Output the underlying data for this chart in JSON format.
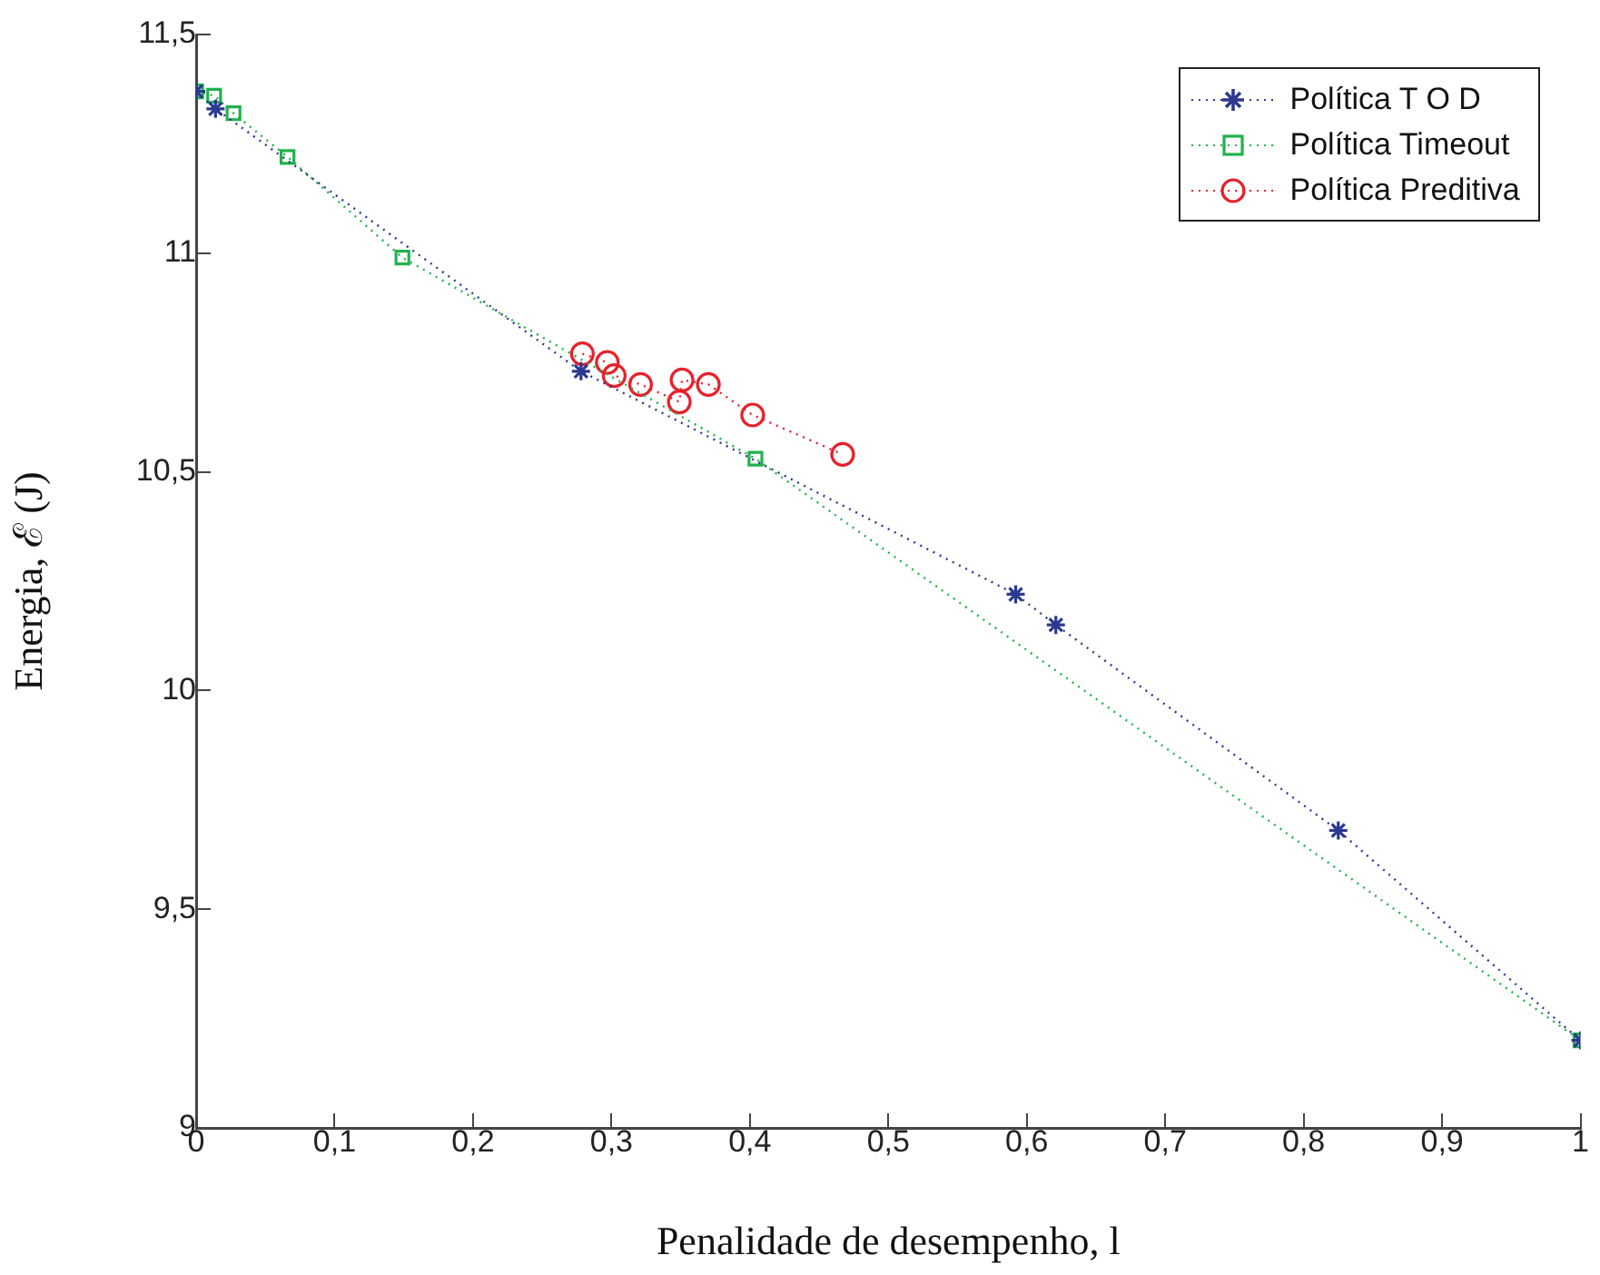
{
  "chart_data": {
    "type": "line",
    "xlabel": "Penalidade de desempenho, l",
    "ylabel": "Energia, ℰ (J)",
    "xlim": [
      0,
      1
    ],
    "ylim": [
      9,
      11.5
    ],
    "xticks": [
      0,
      {
        "value": 0.1,
        "label": "0,1"
      },
      {
        "value": 0.2,
        "label": "0,2"
      },
      {
        "value": 0.3,
        "label": "0,3"
      },
      {
        "value": 0.4,
        "label": "0,4"
      },
      {
        "value": 0.5,
        "label": "0,5"
      },
      {
        "value": 0.6,
        "label": "0,6"
      },
      {
        "value": 0.7,
        "label": "0,7"
      },
      {
        "value": 0.8,
        "label": "0,8"
      },
      {
        "value": 0.9,
        "label": "0,9"
      },
      1
    ],
    "yticks": [
      9,
      {
        "value": 9.5,
        "label": "9,5"
      },
      10,
      {
        "value": 10.5,
        "label": "10,5"
      },
      11,
      {
        "value": 11.5,
        "label": "11,5"
      }
    ],
    "grid": false,
    "legend": "top right",
    "line_style": "dotted",
    "series": [
      {
        "name": "Política T O D",
        "color": "#2b3990",
        "marker": "cross",
        "x": [
          0,
          0.014,
          0.278,
          0.592,
          0.621,
          0.825,
          1
        ],
        "values": [
          11.37,
          11.33,
          10.73,
          10.22,
          10.15,
          9.68,
          9.2
        ]
      },
      {
        "name": "Política Timeout",
        "color": "#22b14c",
        "marker": "square",
        "x": [
          0,
          0.013,
          0.027,
          0.066,
          0.149,
          0.404,
          1
        ],
        "values": [
          11.37,
          11.36,
          11.32,
          11.22,
          10.99,
          10.53,
          9.2
        ]
      },
      {
        "name": "Política Preditiva",
        "color": "#e8202a",
        "marker": "circle",
        "x": [
          0.279,
          0.297,
          0.302,
          0.321,
          0.349,
          0.351,
          0.37,
          0.402,
          0.467
        ],
        "values": [
          10.77,
          10.75,
          10.72,
          10.7,
          10.66,
          10.71,
          10.7,
          10.63,
          10.54
        ]
      }
    ]
  }
}
